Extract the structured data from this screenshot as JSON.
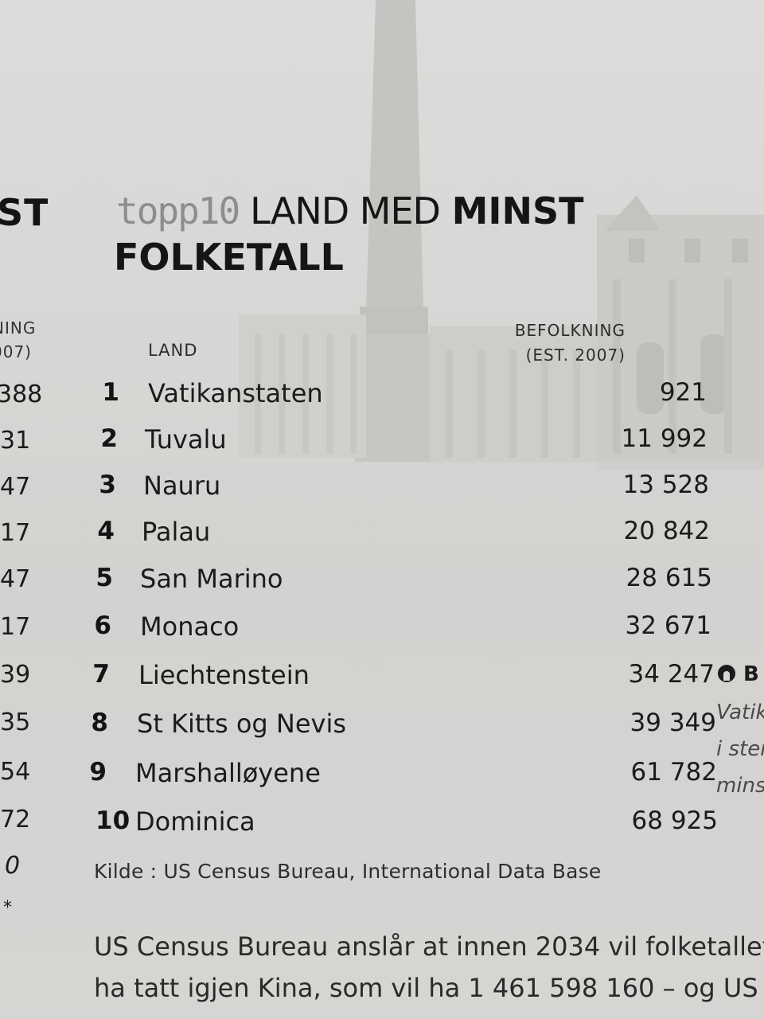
{
  "left_page": {
    "heading_fragment": "ST",
    "column_header_fragment_1": "NING",
    "column_header_fragment_2": "007)",
    "values": [
      "388",
      "31",
      "47",
      "17",
      "47",
      "17",
      "39",
      "35",
      "54",
      "72",
      "0",
      "*"
    ]
  },
  "table": {
    "brand": "topp10",
    "title_part1": "LAND MED",
    "title_part2": "MINST",
    "title_line2": "FOLKETALL",
    "column_land": "LAND",
    "column_pop_line1": "BEFOLKNING",
    "column_pop_line2": "(EST. 2007)",
    "rows": [
      {
        "rank": "1",
        "name": "Vatikanstaten",
        "population": "921"
      },
      {
        "rank": "2",
        "name": "Tuvalu",
        "population": "11 992"
      },
      {
        "rank": "3",
        "name": "Nauru",
        "population": "13 528"
      },
      {
        "rank": "4",
        "name": "Palau",
        "population": "20 842"
      },
      {
        "rank": "5",
        "name": "San Marino",
        "population": "28 615"
      },
      {
        "rank": "6",
        "name": "Monaco",
        "population": "32 671"
      },
      {
        "rank": "7",
        "name": "Liechtenstein",
        "population": "34 247"
      },
      {
        "rank": "8",
        "name": "St Kitts og Nevis",
        "population": "39 349"
      },
      {
        "rank": "9",
        "name": "Marshalløyene",
        "population": "61 782"
      },
      {
        "rank": "10",
        "name": "Dominica",
        "population": "68 925"
      }
    ],
    "source": "Kilde : US Census Bureau, International Data Base"
  },
  "body_text": {
    "line1": "US Census Bureau anslår at innen 2034 vil folketallet",
    "line2": "ha tatt igjen Kina, som vil ha 1 461 598 160 – og US"
  },
  "side_note": {
    "heading_fragment": "B",
    "line1": "Vatik",
    "line2": "i ster",
    "line3": "mins"
  },
  "colors": {
    "brand_gray": "#8d8d8d",
    "paper": "#d6d6d4",
    "ink": "#1b1b1b"
  }
}
